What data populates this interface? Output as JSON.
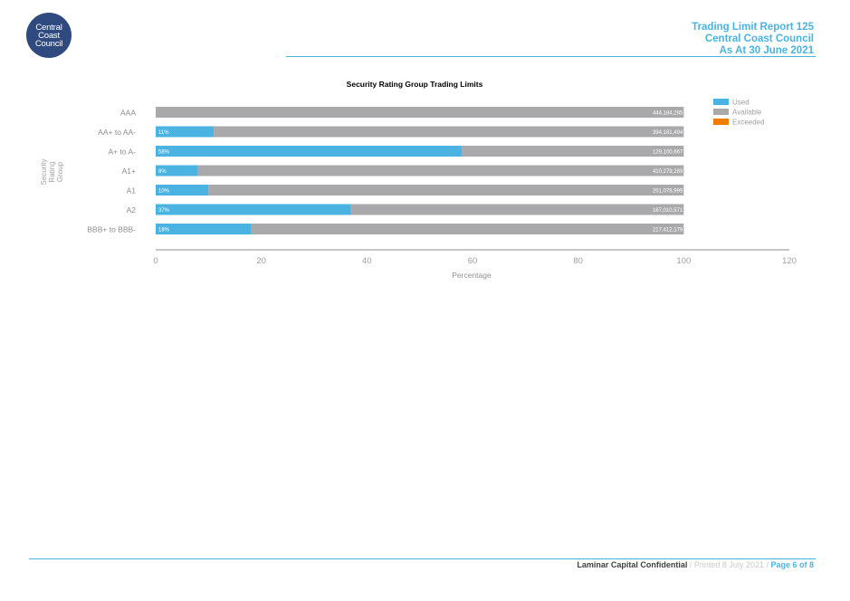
{
  "logo": {
    "line1": "Central",
    "line2": "Coast",
    "line3": "Council"
  },
  "header": {
    "line1": "Trading Limit Report 125",
    "line2": "Central Coast Council",
    "line3": "As At 30 June 2021"
  },
  "footer": {
    "confidential": "Laminar Capital Confidential",
    "printed": " / Printed 8 July 2021 / ",
    "page": "Page 6 of 8"
  },
  "colors": {
    "used": "#4ab3e2",
    "available": "#a9a9ab",
    "exceeded": "#f07d00",
    "accent": "#4ab3e2"
  },
  "chart_data": {
    "type": "bar",
    "orientation": "horizontal",
    "stacked": true,
    "title": "Security Rating Group Trading Limits",
    "xlabel": "Percentage",
    "ylabel": "Security Rating Group",
    "xlim": [
      0,
      120
    ],
    "xticks": [
      0,
      20,
      40,
      60,
      80,
      100,
      120
    ],
    "grid": false,
    "legend_position": "top-right",
    "categories": [
      "AAA",
      "AA+ to AA-",
      "A+ to A-",
      "A1+",
      "A1",
      "A2",
      "BBB+ to BBB-"
    ],
    "series": [
      {
        "name": "Used",
        "values": [
          0,
          11,
          58,
          8,
          10,
          37,
          18
        ]
      },
      {
        "name": "Available",
        "values": [
          100,
          89,
          42,
          92,
          90,
          63,
          82
        ]
      },
      {
        "name": "Exceeded",
        "values": [
          0,
          0,
          0,
          0,
          0,
          0,
          0
        ]
      }
    ],
    "used_labels": [
      "",
      "11%",
      "58%",
      "8%",
      "10%",
      "37%",
      "18%"
    ],
    "available_amounts": [
      "444,184,285",
      "394,181,494",
      "129,100,667",
      "410,279,289",
      "261,078,999",
      "167,010,571",
      "217,412,179"
    ]
  }
}
